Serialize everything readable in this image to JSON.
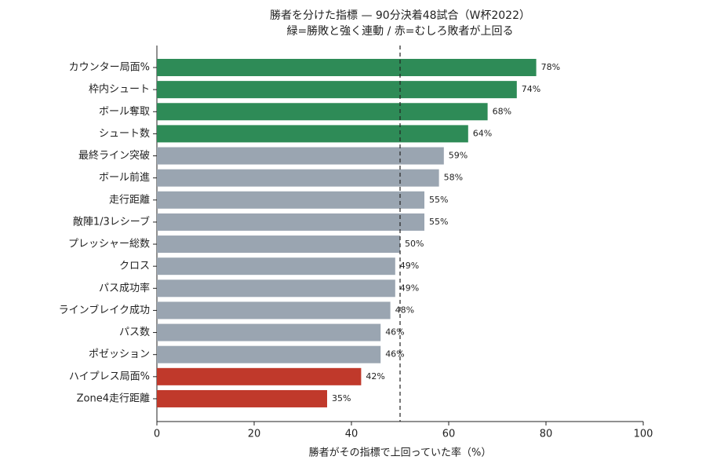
{
  "chart_data": {
    "type": "barh",
    "title": "勝者を分けた指標 — 90分決着48試合（W杯2022）",
    "subtitle": "緑=勝敗と強く連動 / 赤=むしろ敗者が上回る",
    "xlabel": "勝者がその指標で上回っていた率（%）",
    "categories": [
      "カウンター局面%",
      "枠内シュート",
      "ボール奪取",
      "シュート数",
      "最終ライン突破",
      "ボール前進",
      "走行距離",
      "敵陣1/3レシーブ",
      "プレッシャー総数",
      "クロス",
      "パス成功率",
      "ラインブレイク成功",
      "パス数",
      "ポゼッション",
      "ハイプレス局面%",
      "Zone4走行距離"
    ],
    "values": [
      78,
      74,
      68,
      64,
      59,
      58,
      55,
      55,
      50,
      49,
      49,
      48,
      46,
      46,
      42,
      35
    ],
    "value_labels": [
      "78%",
      "74%",
      "68%",
      "64%",
      "59%",
      "58%",
      "55%",
      "55%",
      "50%",
      "49%",
      "49%",
      "48%",
      "46%",
      "46%",
      "42%",
      "35%"
    ],
    "colors": [
      "#2e8b57",
      "#2e8b57",
      "#2e8b57",
      "#2e8b57",
      "#9aa5b1",
      "#9aa5b1",
      "#9aa5b1",
      "#9aa5b1",
      "#9aa5b1",
      "#9aa5b1",
      "#9aa5b1",
      "#9aa5b1",
      "#9aa5b1",
      "#9aa5b1",
      "#c0392b",
      "#c0392b"
    ],
    "reference_line": 50,
    "xlim": [
      0,
      100
    ],
    "xticks": [
      0,
      20,
      40,
      60,
      80,
      100
    ]
  }
}
